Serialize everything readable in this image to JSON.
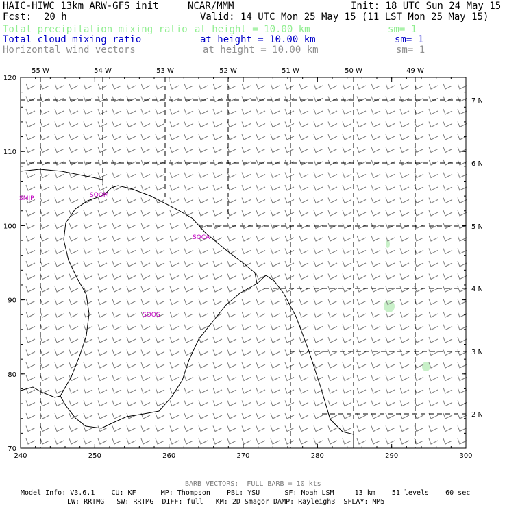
{
  "header": {
    "model_title": "HAIC-HIWC 13km ARW-GFS init",
    "org": "NCAR/MMM",
    "init_time": "Init: 18 UTC Sun 24 May 15",
    "fcst_label": "Fcst:",
    "fcst_value": "20 h",
    "valid_time": "Valid: 14 UTC Mon 25 May 15 (11 LST Mon 25 May 15)"
  },
  "fields": [
    {
      "name": "Total precipitation mixing ratio",
      "level": "at height = 10.00 km",
      "sm": "sm= 1",
      "color": "#90ee90"
    },
    {
      "name": "Total cloud mixing ratio",
      "level": "at height = 10.00 km",
      "sm": "sm= 1",
      "color": "#0000c8"
    },
    {
      "name": "Horizontal wind vectors",
      "level": "at height = 10.00 km",
      "sm": "sm= 1",
      "color": "#909090"
    }
  ],
  "map": {
    "x_ticks": [
      "240",
      "250",
      "260",
      "270",
      "280",
      "290",
      "300"
    ],
    "y_ticks": [
      "70",
      "80",
      "90",
      "100",
      "110",
      "120"
    ],
    "lon_labels": [
      "55 W",
      "54 W",
      "53 W",
      "52 W",
      "51 W",
      "50 W",
      "49 W"
    ],
    "lat_labels": [
      "7 N",
      "6 N",
      "5 N",
      "4 N",
      "3 N",
      "2 N"
    ],
    "stations": [
      "SMJP",
      "SOCA",
      "SOOM",
      "SOOS"
    ],
    "precip_color": "#c8f0c8",
    "station_color": "#c000c0"
  },
  "footer": {
    "barb_note": "BARB VECTORS:  FULL BARB = 10 kts",
    "line1": "Model Info: V3.6.1    CU: KF      MP: Thompson    PBL: YSU      SF: Noah LSM     13 km    51 levels    60 sec",
    "line2": "LW: RRTMG   SW: RRTMG  DIFF: full   KM: 2D Smagor DAMP: Rayleigh3  SFLAY: MM5"
  }
}
